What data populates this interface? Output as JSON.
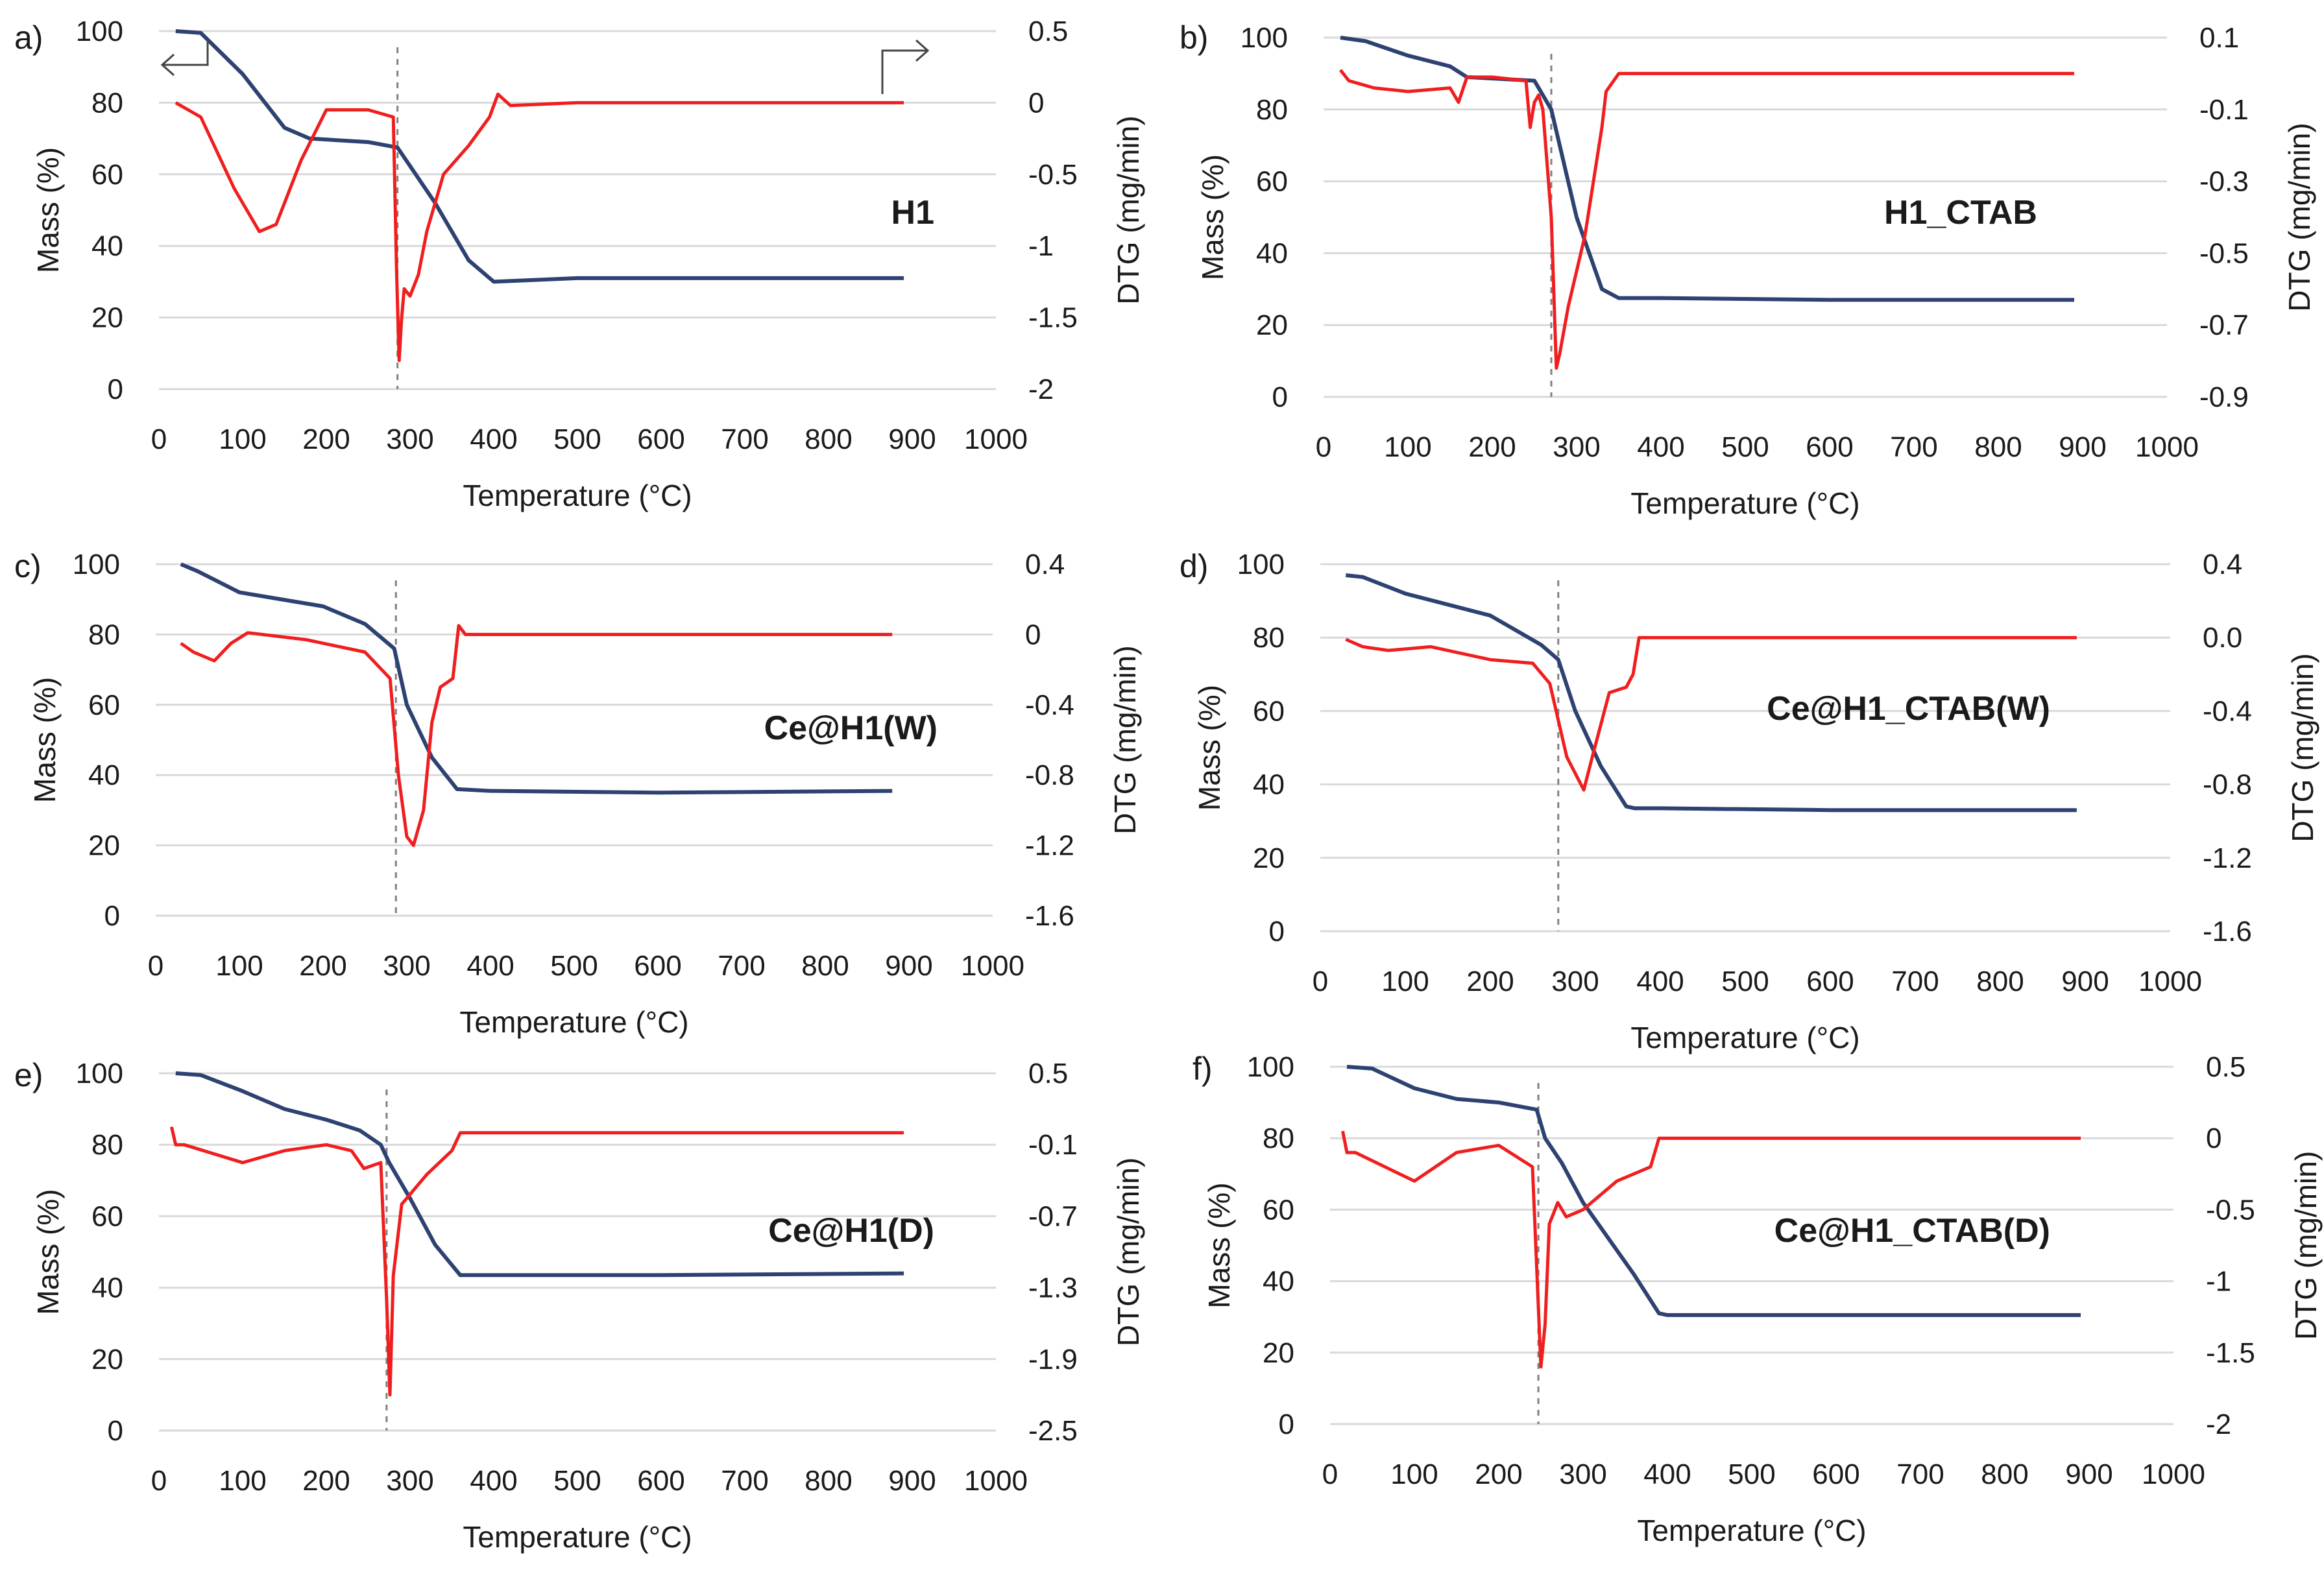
{
  "colors": {
    "mass": "#2e4272",
    "dtg": "#f01e1e",
    "grid": "#d9d9d9",
    "marker": "#808080"
  },
  "chart_data": [
    {
      "panel": "a)",
      "sample": "H1",
      "type": "line",
      "xlabel": "Temperature (°C)",
      "ylabel": "Mass (%)",
      "y2label": "DTG (mg/min)",
      "xlim": [
        0,
        1000
      ],
      "x_ticks": [
        "0",
        "100",
        "200",
        "300",
        "400",
        "500",
        "600",
        "700",
        "800",
        "900",
        "1000"
      ],
      "ylim": [
        0,
        100
      ],
      "y_ticks": [
        "0",
        "20",
        "40",
        "60",
        "80",
        "100"
      ],
      "y2lim": [
        -2,
        0.5
      ],
      "y2_ticks": [
        "-2",
        "-1.5",
        "-1",
        "-0.5",
        "0",
        "0.5"
      ],
      "marker_x": 285,
      "series": [
        {
          "name": "Mass",
          "axis": "left",
          "x": [
            20,
            50,
            100,
            150,
            180,
            250,
            285,
            330,
            370,
            400,
            500,
            700,
            890
          ],
          "y": [
            100,
            99.5,
            88,
            73,
            70,
            69,
            67.5,
            52,
            36,
            30,
            31,
            31,
            31
          ]
        },
        {
          "name": "DTG",
          "axis": "right",
          "x": [
            20,
            50,
            90,
            120,
            140,
            170,
            200,
            250,
            280,
            284,
            287,
            290,
            293,
            300,
            310,
            320,
            340,
            370,
            395,
            405,
            420,
            500,
            700,
            890
          ],
          "y": [
            0,
            -0.1,
            -0.6,
            -0.9,
            -0.85,
            -0.4,
            -0.05,
            -0.05,
            -0.1,
            -1.2,
            -1.8,
            -1.5,
            -1.3,
            -1.35,
            -1.2,
            -0.9,
            -0.5,
            -0.3,
            -0.1,
            0.06,
            -0.02,
            0,
            0,
            0
          ]
        }
      ]
    },
    {
      "panel": "b)",
      "sample": "H1_CTAB",
      "type": "line",
      "xlabel": "Temperature (°C)",
      "ylabel": "Mass (%)",
      "y2label": "DTG (mg/min)",
      "xlim": [
        0,
        1000
      ],
      "x_ticks": [
        "0",
        "100",
        "200",
        "300",
        "400",
        "500",
        "600",
        "700",
        "800",
        "900",
        "1000"
      ],
      "ylim": [
        0,
        100
      ],
      "y_ticks": [
        "0",
        "20",
        "40",
        "60",
        "80",
        "100"
      ],
      "y2lim": [
        -0.9,
        0.1
      ],
      "y2_ticks": [
        "-0.9",
        "-0.7",
        "-0.5",
        "-0.3",
        "-0.1",
        "0.1"
      ],
      "marker_x": 270,
      "series": [
        {
          "name": "Mass",
          "axis": "left",
          "x": [
            20,
            50,
            100,
            150,
            170,
            250,
            270,
            300,
            330,
            350,
            400,
            600,
            890
          ],
          "y": [
            100,
            99,
            95,
            92,
            89,
            88,
            80,
            50,
            30,
            27.5,
            27.5,
            27,
            27
          ]
        },
        {
          "name": "DTG",
          "axis": "right",
          "x": [
            20,
            30,
            60,
            100,
            150,
            160,
            170,
            200,
            240,
            245,
            250,
            255,
            260,
            270,
            276,
            280,
            290,
            310,
            330,
            335,
            350,
            400,
            890
          ],
          "y": [
            0.01,
            -0.02,
            -0.04,
            -0.05,
            -0.04,
            -0.08,
            -0.01,
            -0.01,
            -0.02,
            -0.15,
            -0.08,
            -0.06,
            -0.1,
            -0.4,
            -0.82,
            -0.78,
            -0.65,
            -0.45,
            -0.15,
            -0.05,
            0,
            0,
            0
          ]
        }
      ]
    },
    {
      "panel": "c)",
      "sample": "Ce@H1(W)",
      "type": "line",
      "xlabel": "Temperature (°C)",
      "ylabel": "Mass (%)",
      "y2label": "DTG (mg/min)",
      "xlim": [
        0,
        1000
      ],
      "x_ticks": [
        "0",
        "100",
        "200",
        "300",
        "400",
        "500",
        "600",
        "700",
        "800",
        "900",
        "1000"
      ],
      "ylim": [
        0,
        100
      ],
      "y_ticks": [
        "0",
        "20",
        "40",
        "60",
        "80",
        "100"
      ],
      "y2lim": [
        -1.6,
        0.4
      ],
      "y2_ticks": [
        "-1.6",
        "-1.2",
        "-0.8",
        "-0.4",
        "0",
        "0.4"
      ],
      "marker_x": 287,
      "series": [
        {
          "name": "Mass",
          "axis": "left",
          "x": [
            30,
            50,
            100,
            200,
            250,
            285,
            300,
            330,
            360,
            400,
            600,
            880
          ],
          "y": [
            100,
            98,
            92,
            88,
            83,
            76,
            60,
            45,
            36,
            35.5,
            35,
            35.5
          ]
        },
        {
          "name": "DTG",
          "axis": "right",
          "x": [
            30,
            45,
            70,
            90,
            110,
            180,
            250,
            280,
            290,
            300,
            308,
            320,
            330,
            340,
            355,
            362,
            370,
            500,
            880
          ],
          "y": [
            -0.05,
            -0.1,
            -0.15,
            -0.05,
            0.01,
            -0.03,
            -0.1,
            -0.25,
            -0.8,
            -1.15,
            -1.2,
            -1.0,
            -0.5,
            -0.3,
            -0.25,
            0.05,
            0,
            0,
            0
          ]
        }
      ]
    },
    {
      "panel": "d)",
      "sample": "Ce@H1_CTAB(W)",
      "type": "line",
      "xlabel": "Temperature (°C)",
      "ylabel": "Mass (%)",
      "y2label": "DTG (mg/min)",
      "xlim": [
        0,
        1000
      ],
      "x_ticks": [
        "0",
        "100",
        "200",
        "300",
        "400",
        "500",
        "600",
        "700",
        "800",
        "900",
        "1000"
      ],
      "ylim": [
        0,
        100
      ],
      "y_ticks": [
        "0",
        "20",
        "40",
        "60",
        "80",
        "100"
      ],
      "y2lim": [
        -1.6,
        0.4
      ],
      "y2_ticks": [
        "-1.6",
        "-1.2",
        "-0.8",
        "-0.4",
        "0.0",
        "0.4"
      ],
      "marker_x": 280,
      "series": [
        {
          "name": "Mass",
          "axis": "left",
          "x": [
            30,
            50,
            100,
            200,
            260,
            280,
            300,
            330,
            360,
            370,
            400,
            600,
            890
          ],
          "y": [
            97,
            96.5,
            92,
            86,
            78,
            74,
            60,
            45,
            34,
            33.5,
            33.5,
            33,
            33
          ]
        },
        {
          "name": "DTG",
          "axis": "right",
          "x": [
            30,
            50,
            80,
            130,
            200,
            250,
            270,
            290,
            310,
            320,
            340,
            360,
            368,
            375,
            400,
            890
          ],
          "y": [
            -0.01,
            -0.05,
            -0.07,
            -0.05,
            -0.12,
            -0.14,
            -0.25,
            -0.65,
            -0.83,
            -0.65,
            -0.3,
            -0.27,
            -0.2,
            0,
            0,
            0
          ]
        }
      ]
    },
    {
      "panel": "e)",
      "sample": "Ce@H1(D)",
      "type": "line",
      "xlabel": "Temperature (°C)",
      "ylabel": "Mass (%)",
      "y2label": "DTG (mg/min)",
      "xlim": [
        0,
        1000
      ],
      "x_ticks": [
        "0",
        "100",
        "200",
        "300",
        "400",
        "500",
        "600",
        "700",
        "800",
        "900",
        "1000"
      ],
      "ylim": [
        0,
        100
      ],
      "y_ticks": [
        "0",
        "20",
        "40",
        "60",
        "80",
        "100"
      ],
      "y2lim": [
        -2.5,
        0.5
      ],
      "y2_ticks": [
        "-2.5",
        "-1.9",
        "-1.3",
        "-0.7",
        "-0.1",
        "0.5"
      ],
      "marker_x": 272,
      "series": [
        {
          "name": "Mass",
          "axis": "left",
          "x": [
            20,
            50,
            100,
            150,
            200,
            240,
            265,
            275,
            300,
            330,
            360,
            400,
            600,
            890
          ],
          "y": [
            100,
            99.5,
            95,
            90,
            87,
            84,
            80,
            75,
            65,
            52,
            43.5,
            43.5,
            43.5,
            44
          ]
        },
        {
          "name": "DTG",
          "axis": "right",
          "x": [
            15,
            20,
            30,
            100,
            150,
            200,
            230,
            245,
            265,
            272,
            276,
            280,
            290,
            320,
            350,
            360,
            400,
            890
          ],
          "y": [
            0.05,
            -0.1,
            -0.1,
            -0.25,
            -0.15,
            -0.1,
            -0.15,
            -0.3,
            -0.25,
            -1.4,
            -2.2,
            -1.2,
            -0.6,
            -0.35,
            -0.15,
            0,
            0,
            0
          ]
        }
      ]
    },
    {
      "panel": "f)",
      "sample": "Ce@H1_CTAB(D)",
      "type": "line",
      "xlabel": "Temperature (°C)",
      "ylabel": "Mass (%)",
      "y2label": "DTG (mg/min)",
      "xlim": [
        0,
        1000
      ],
      "x_ticks": [
        "0",
        "100",
        "200",
        "300",
        "400",
        "500",
        "600",
        "700",
        "800",
        "900",
        "1000"
      ],
      "ylim": [
        0,
        100
      ],
      "y_ticks": [
        "0",
        "20",
        "40",
        "60",
        "80",
        "100"
      ],
      "y2lim": [
        -2,
        0.5
      ],
      "y2_ticks": [
        "-2",
        "-1.5",
        "-1",
        "-0.5",
        "0",
        "0.5"
      ],
      "marker_x": 247,
      "series": [
        {
          "name": "Mass",
          "axis": "left",
          "x": [
            20,
            50,
            100,
            150,
            200,
            245,
            255,
            275,
            300,
            330,
            360,
            390,
            400,
            600,
            890
          ],
          "y": [
            100,
            99.5,
            94,
            91,
            90,
            88,
            80,
            73,
            62,
            52,
            42,
            31,
            30.5,
            30.5,
            30.5
          ]
        },
        {
          "name": "DTG",
          "axis": "right",
          "x": [
            15,
            20,
            30,
            100,
            150,
            200,
            240,
            250,
            255,
            260,
            270,
            280,
            300,
            340,
            380,
            390,
            400,
            890
          ],
          "y": [
            0.05,
            -0.1,
            -0.1,
            -0.3,
            -0.1,
            -0.05,
            -0.2,
            -1.6,
            -1.3,
            -0.6,
            -0.45,
            -0.55,
            -0.5,
            -0.3,
            -0.2,
            0,
            0,
            0
          ]
        }
      ]
    }
  ]
}
